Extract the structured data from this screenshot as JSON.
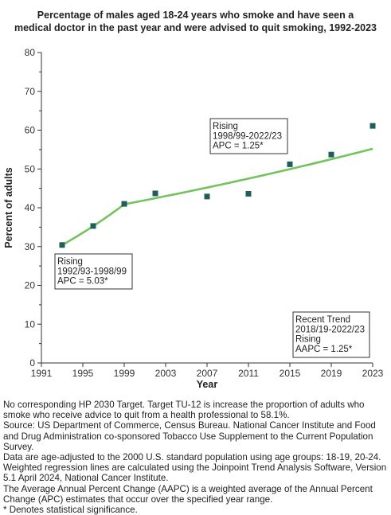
{
  "title_lines": [
    "Percentage of males aged 18-24 years who smoke and have seen a",
    "medical doctor in the past year and were advised to quit smoking, 1992-2023"
  ],
  "chart_data": {
    "type": "scatter",
    "xlabel": "Year",
    "ylabel": "Percent of adults",
    "xlim": [
      1991,
      2023
    ],
    "ylim": [
      0,
      80
    ],
    "x_ticks": [
      1991,
      1995,
      1999,
      2003,
      2007,
      2011,
      2015,
      2019,
      2023
    ],
    "y_ticks": [
      0,
      10,
      20,
      30,
      40,
      50,
      60,
      70,
      80
    ],
    "grid": false,
    "series": [
      {
        "type": "scatter",
        "color": "#1f5f5b",
        "x": [
          1993,
          1996,
          1999,
          2002,
          2007,
          2011,
          2015,
          2019,
          2023
        ],
        "y": [
          30.4,
          35.3,
          41.0,
          43.7,
          42.9,
          43.6,
          51.2,
          53.7,
          61.1
        ]
      },
      {
        "type": "line",
        "color": "#73c35c",
        "x": [
          1993,
          1999,
          2023
        ],
        "y": [
          30.4,
          40.9,
          55.2
        ]
      }
    ],
    "annotations": [
      {
        "lines": [
          "Rising",
          "1992/93-1998/99",
          "APC =  5.03*"
        ]
      },
      {
        "lines": [
          "Rising",
          "1998/99-2022/23",
          "APC =  1.25*"
        ]
      },
      {
        "lines": [
          "Recent Trend",
          "2018/19-2022/23",
          "Rising",
          "AAPC =  1.25*"
        ]
      }
    ]
  },
  "footnotes": [
    "No corresponding HP 2030 Target. Target TU-12 is increase the proportion of adults who smoke who receive advice to quit from a health professional to 58.1%.",
    "Source: US Department of Commerce, Census Bureau. National Cancer Institute and Food and Drug Administration co-sponsored Tobacco Use Supplement to the Current Population Survey.",
    "Data are age-adjusted to the 2000 U.S. standard population using age groups: 18-19, 20-24.",
    "Weighted regression lines are calculated using the Joinpoint Trend Analysis Software, Version 5.1 April 2024, National Cancer Institute.",
    "The Average Annual Percent Change (AAPC) is a weighted average of the Annual Percent Change (APC) estimates that occur over the specified year range.",
    "* Denotes statistical significance."
  ]
}
